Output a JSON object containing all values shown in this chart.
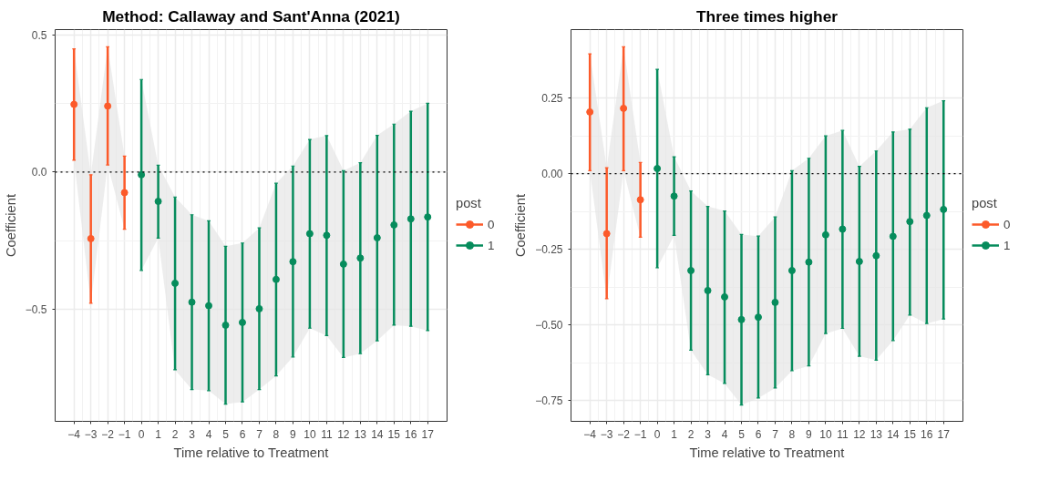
{
  "chart_data": [
    {
      "type": "scatter",
      "title": "Method: Callaway and Sant'Anna (2021)",
      "xlabel": "Time relative to Treatment",
      "ylabel": "Coefficient",
      "legend_title": "post",
      "legend": "right",
      "grid": true,
      "marker": "circle",
      "xlim": [
        -5.12,
        18.15
      ],
      "xticks": [
        -4,
        -3,
        -2,
        -1,
        0,
        1,
        2,
        3,
        4,
        5,
        6,
        7,
        8,
        9,
        10,
        11,
        12,
        13,
        14,
        15,
        16,
        17
      ],
      "ylim": [
        -0.91,
        0.52
      ],
      "yticks": [
        {
          "value": 0.5,
          "label": "0.5"
        },
        {
          "value": 0.0,
          "label": "0.0"
        },
        {
          "value": -0.5,
          "label": "−0.5"
        }
      ],
      "ref_lines": [
        {
          "axis": "y",
          "value": 0,
          "line_style": "dotted",
          "color": "#000000"
        }
      ],
      "series": [
        {
          "name": "0",
          "color": "#fc5a2a",
          "x": [
            -4,
            -3,
            -2,
            -1
          ],
          "values": [
            0.247,
            -0.243,
            0.241,
            -0.075
          ],
          "errors": [
            [
              0.043,
              0.45
            ],
            [
              -0.479,
              -0.01
            ],
            [
              0.026,
              0.457
            ],
            [
              -0.209,
              0.058
            ]
          ],
          "lower": [
            0.043,
            -0.479,
            0.026,
            -0.209
          ],
          "upper": [
            0.45,
            -0.01,
            0.457,
            0.058
          ]
        },
        {
          "name": "1",
          "color": "#068c5c",
          "x": [
            0,
            1,
            2,
            3,
            4,
            5,
            6,
            7,
            8,
            9,
            10,
            11,
            12,
            13,
            14,
            15,
            16,
            17
          ],
          "values": [
            -0.01,
            -0.107,
            -0.406,
            -0.475,
            -0.488,
            -0.559,
            -0.549,
            -0.499,
            -0.392,
            -0.327,
            -0.225,
            -0.231,
            -0.336,
            -0.314,
            -0.24,
            -0.193,
            -0.171,
            -0.164
          ],
          "errors": [
            [
              -0.359,
              0.338
            ],
            [
              -0.241,
              0.025
            ],
            [
              -0.722,
              -0.091
            ],
            [
              -0.794,
              -0.156
            ],
            [
              -0.798,
              -0.178
            ],
            [
              -0.847,
              -0.271
            ],
            [
              -0.839,
              -0.259
            ],
            [
              -0.794,
              -0.204
            ],
            [
              -0.744,
              -0.041
            ],
            [
              -0.675,
              0.022
            ],
            [
              -0.57,
              0.119
            ],
            [
              -0.597,
              0.133
            ],
            [
              -0.677,
              0.005
            ],
            [
              -0.663,
              0.034
            ],
            [
              -0.616,
              0.134
            ],
            [
              -0.559,
              0.175
            ],
            [
              -0.563,
              0.222
            ],
            [
              -0.579,
              0.251
            ]
          ],
          "lower": [
            -0.359,
            -0.241,
            -0.722,
            -0.794,
            -0.798,
            -0.847,
            -0.839,
            -0.794,
            -0.744,
            -0.675,
            -0.57,
            -0.597,
            -0.677,
            -0.663,
            -0.616,
            -0.559,
            -0.563,
            -0.579
          ],
          "upper": [
            0.338,
            0.025,
            -0.091,
            -0.156,
            -0.178,
            -0.271,
            -0.259,
            -0.204,
            -0.041,
            0.022,
            0.119,
            0.133,
            0.005,
            0.034,
            0.134,
            0.175,
            0.222,
            0.251
          ]
        }
      ]
    },
    {
      "type": "scatter",
      "title": "Three times higher",
      "xlabel": "Time relative to Treatment",
      "ylabel": "Coefficient",
      "legend_title": "post",
      "legend": "right",
      "grid": true,
      "marker": "circle",
      "xlim": [
        -5.12,
        18.15
      ],
      "xticks": [
        -4,
        -3,
        -2,
        -1,
        0,
        1,
        2,
        3,
        4,
        5,
        6,
        7,
        8,
        9,
        10,
        11,
        12,
        13,
        14,
        15,
        16,
        17
      ],
      "ylim": [
        -0.818,
        0.476
      ],
      "yticks": [
        {
          "value": 0.25,
          "label": "0.25"
        },
        {
          "value": 0.0,
          "label": "0.00"
        },
        {
          "value": -0.25,
          "label": "−0.25"
        },
        {
          "value": -0.5,
          "label": "−0.50"
        },
        {
          "value": -0.75,
          "label": "−0.75"
        }
      ],
      "ref_lines": [
        {
          "axis": "y",
          "value": 0,
          "line_style": "dotted",
          "color": "#000000"
        }
      ],
      "series": [
        {
          "name": "0",
          "color": "#fc5a2a",
          "x": [
            -4,
            -3,
            -2,
            -1
          ],
          "values": [
            0.204,
            -0.198,
            0.216,
            -0.086
          ],
          "errors": [
            [
              0.01,
              0.396
            ],
            [
              -0.413,
              0.02
            ],
            [
              0.01,
              0.419
            ],
            [
              -0.21,
              0.037
            ]
          ],
          "lower": [
            0.01,
            -0.413,
            0.01,
            -0.21
          ],
          "upper": [
            0.396,
            0.02,
            0.419,
            0.037
          ]
        },
        {
          "name": "1",
          "color": "#068c5c",
          "x": [
            0,
            1,
            2,
            3,
            4,
            5,
            6,
            7,
            8,
            9,
            10,
            11,
            12,
            13,
            14,
            15,
            16,
            17
          ],
          "values": [
            0.017,
            -0.074,
            -0.32,
            -0.386,
            -0.407,
            -0.482,
            -0.474,
            -0.425,
            -0.32,
            -0.292,
            -0.202,
            -0.183,
            -0.29,
            -0.271,
            -0.207,
            -0.158,
            -0.138,
            -0.118
          ],
          "errors": [
            [
              -0.311,
              0.345
            ],
            [
              -0.204,
              0.056
            ],
            [
              -0.583,
              -0.057
            ],
            [
              -0.664,
              -0.108
            ],
            [
              -0.693,
              -0.123
            ],
            [
              -0.764,
              -0.201
            ],
            [
              -0.741,
              -0.206
            ],
            [
              -0.708,
              -0.143
            ],
            [
              -0.651,
              0.01
            ],
            [
              -0.635,
              0.051
            ],
            [
              -0.528,
              0.125
            ],
            [
              -0.511,
              0.143
            ],
            [
              -0.603,
              0.024
            ],
            [
              -0.616,
              0.075
            ],
            [
              -0.551,
              0.138
            ],
            [
              -0.467,
              0.147
            ],
            [
              -0.495,
              0.218
            ],
            [
              -0.48,
              0.241
            ]
          ],
          "lower": [
            -0.311,
            -0.204,
            -0.583,
            -0.664,
            -0.693,
            -0.764,
            -0.741,
            -0.708,
            -0.651,
            -0.635,
            -0.528,
            -0.511,
            -0.603,
            -0.616,
            -0.551,
            -0.467,
            -0.495,
            -0.48
          ],
          "upper": [
            0.345,
            0.056,
            -0.057,
            -0.108,
            -0.123,
            -0.201,
            -0.206,
            -0.143,
            0.01,
            0.051,
            0.125,
            0.143,
            0.024,
            0.075,
            0.138,
            0.147,
            0.218,
            0.241
          ]
        }
      ]
    }
  ]
}
